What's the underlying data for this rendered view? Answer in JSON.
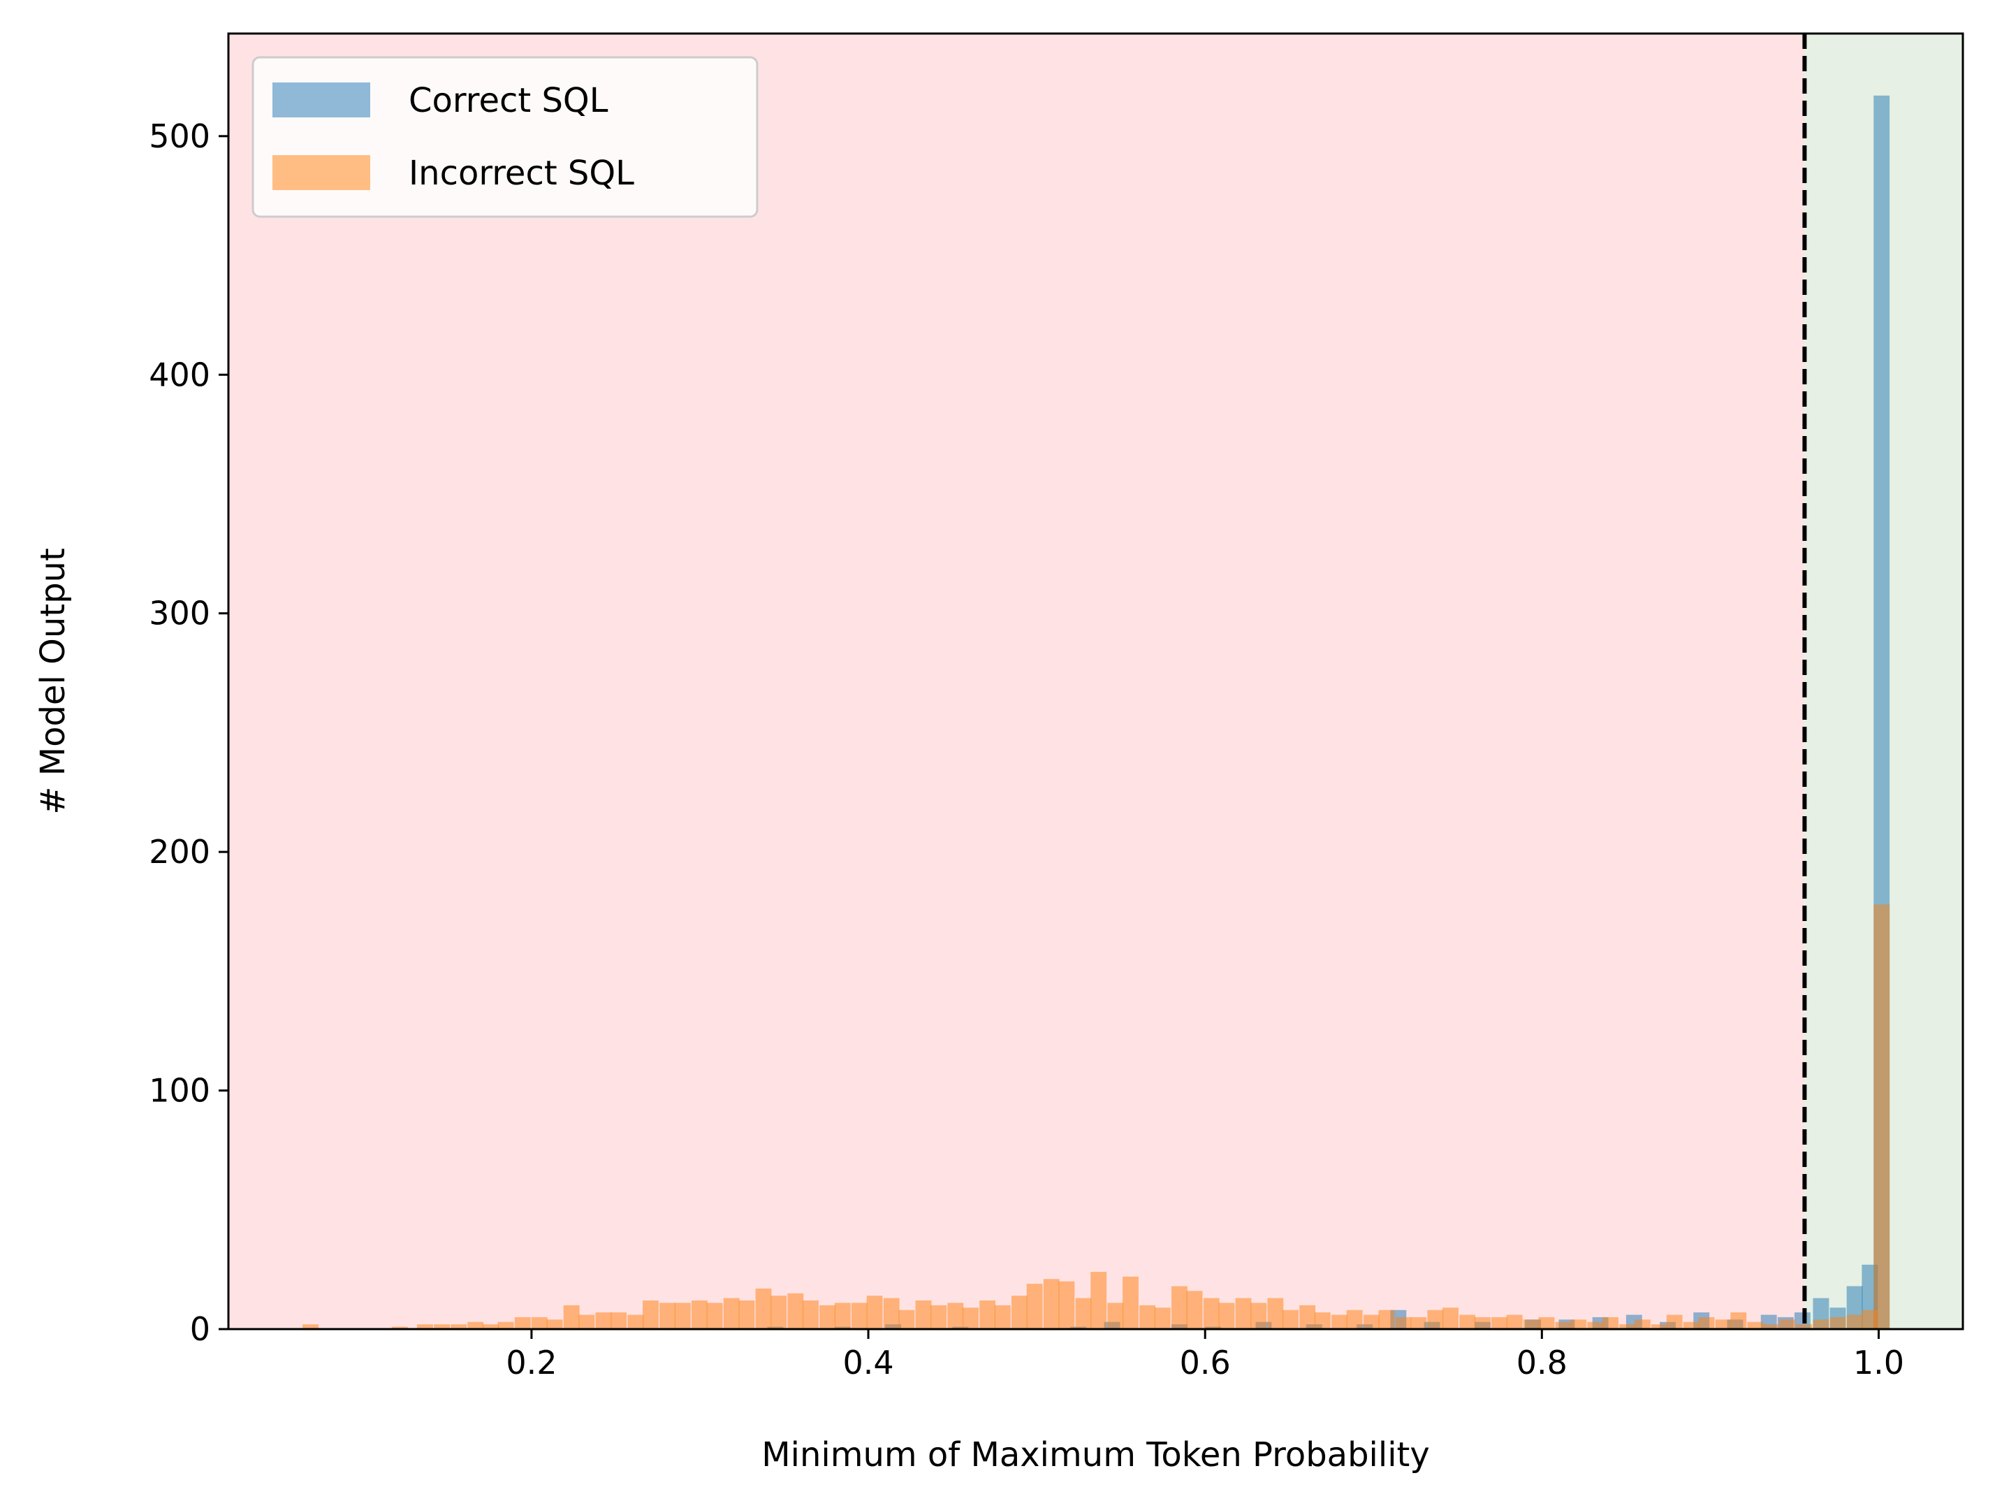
{
  "chart_data": {
    "type": "bar",
    "subtype": "overlapping-histogram",
    "xlabel": "Minimum of Maximum Token Probability",
    "ylabel": "# Model Output",
    "xlim": [
      0.02,
      1.05
    ],
    "ylim": [
      0,
      543
    ],
    "xticks": [
      0.2,
      0.4,
      0.6,
      0.8,
      1.0
    ],
    "xtick_labels": [
      "0.2",
      "0.4",
      "0.6",
      "0.8",
      "1.0"
    ],
    "yticks": [
      0,
      100,
      200,
      300,
      400,
      500
    ],
    "ytick_labels": [
      "0",
      "100",
      "200",
      "300",
      "400",
      "500"
    ],
    "grid": false,
    "legend": {
      "placement": "top-left",
      "entries": [
        "Correct SQL",
        "Incorrect SQL"
      ]
    },
    "threshold": {
      "x": 0.956,
      "style": "dashed",
      "color": "#000000"
    },
    "regions": [
      {
        "x_from": 0.02,
        "x_to": 0.956,
        "color": "#ffe3e4"
      },
      {
        "x_from": 0.956,
        "x_to": 1.05,
        "color": "#e6f0e4"
      }
    ],
    "bin_width": 0.0095,
    "series": [
      {
        "name": "Correct SQL",
        "color": "#1f77b4",
        "opacity": 0.5,
        "bins": [
          [
            0.34,
            1
          ],
          [
            0.38,
            1
          ],
          [
            0.41,
            2
          ],
          [
            0.45,
            1
          ],
          [
            0.52,
            1
          ],
          [
            0.54,
            3
          ],
          [
            0.58,
            2
          ],
          [
            0.6,
            1
          ],
          [
            0.63,
            3
          ],
          [
            0.66,
            2
          ],
          [
            0.69,
            2
          ],
          [
            0.71,
            8
          ],
          [
            0.73,
            3
          ],
          [
            0.76,
            3
          ],
          [
            0.79,
            4
          ],
          [
            0.81,
            4
          ],
          [
            0.83,
            5
          ],
          [
            0.85,
            6
          ],
          [
            0.87,
            3
          ],
          [
            0.89,
            7
          ],
          [
            0.91,
            4
          ],
          [
            0.93,
            6
          ],
          [
            0.94,
            5
          ],
          [
            0.95,
            7
          ],
          [
            0.961,
            13
          ],
          [
            0.971,
            9
          ],
          [
            0.981,
            18
          ],
          [
            0.99,
            27
          ],
          [
            0.997,
            517
          ]
        ]
      },
      {
        "name": "Incorrect SQL",
        "color": "#ff7f0e",
        "opacity": 0.5,
        "bins": [
          [
            0.064,
            2
          ],
          [
            0.117,
            1
          ],
          [
            0.132,
            2
          ],
          [
            0.142,
            2
          ],
          [
            0.152,
            2
          ],
          [
            0.162,
            3
          ],
          [
            0.171,
            2
          ],
          [
            0.18,
            3
          ],
          [
            0.19,
            5
          ],
          [
            0.2,
            5
          ],
          [
            0.209,
            4
          ],
          [
            0.219,
            10
          ],
          [
            0.228,
            6
          ],
          [
            0.238,
            7
          ],
          [
            0.247,
            7
          ],
          [
            0.257,
            6
          ],
          [
            0.266,
            12
          ],
          [
            0.276,
            11
          ],
          [
            0.285,
            11
          ],
          [
            0.295,
            12
          ],
          [
            0.304,
            11
          ],
          [
            0.314,
            13
          ],
          [
            0.323,
            12
          ],
          [
            0.333,
            17
          ],
          [
            0.342,
            14
          ],
          [
            0.352,
            15
          ],
          [
            0.361,
            12
          ],
          [
            0.371,
            10
          ],
          [
            0.38,
            11
          ],
          [
            0.39,
            11
          ],
          [
            0.399,
            14
          ],
          [
            0.409,
            13
          ],
          [
            0.418,
            8
          ],
          [
            0.428,
            12
          ],
          [
            0.437,
            10
          ],
          [
            0.447,
            11
          ],
          [
            0.456,
            9
          ],
          [
            0.466,
            12
          ],
          [
            0.475,
            10
          ],
          [
            0.485,
            14
          ],
          [
            0.494,
            19
          ],
          [
            0.504,
            21
          ],
          [
            0.513,
            20
          ],
          [
            0.523,
            13
          ],
          [
            0.532,
            24
          ],
          [
            0.542,
            11
          ],
          [
            0.551,
            22
          ],
          [
            0.561,
            10
          ],
          [
            0.57,
            9
          ],
          [
            0.58,
            18
          ],
          [
            0.589,
            16
          ],
          [
            0.599,
            13
          ],
          [
            0.608,
            11
          ],
          [
            0.618,
            13
          ],
          [
            0.627,
            11
          ],
          [
            0.637,
            13
          ],
          [
            0.646,
            8
          ],
          [
            0.656,
            10
          ],
          [
            0.665,
            7
          ],
          [
            0.675,
            6
          ],
          [
            0.684,
            8
          ],
          [
            0.694,
            6
          ],
          [
            0.703,
            8
          ],
          [
            0.713,
            5
          ],
          [
            0.722,
            5
          ],
          [
            0.732,
            8
          ],
          [
            0.741,
            9
          ],
          [
            0.751,
            6
          ],
          [
            0.76,
            5
          ],
          [
            0.77,
            5
          ],
          [
            0.779,
            6
          ],
          [
            0.789,
            4
          ],
          [
            0.798,
            5
          ],
          [
            0.808,
            3
          ],
          [
            0.817,
            4
          ],
          [
            0.827,
            3
          ],
          [
            0.836,
            5
          ],
          [
            0.846,
            2
          ],
          [
            0.855,
            4
          ],
          [
            0.865,
            2
          ],
          [
            0.874,
            6
          ],
          [
            0.884,
            3
          ],
          [
            0.893,
            5
          ],
          [
            0.903,
            4
          ],
          [
            0.912,
            7
          ],
          [
            0.922,
            3
          ],
          [
            0.931,
            2
          ],
          [
            0.941,
            4
          ],
          [
            0.951,
            2
          ],
          [
            0.961,
            4
          ],
          [
            0.971,
            5
          ],
          [
            0.981,
            6
          ],
          [
            0.99,
            8
          ],
          [
            0.997,
            178
          ]
        ]
      }
    ]
  }
}
